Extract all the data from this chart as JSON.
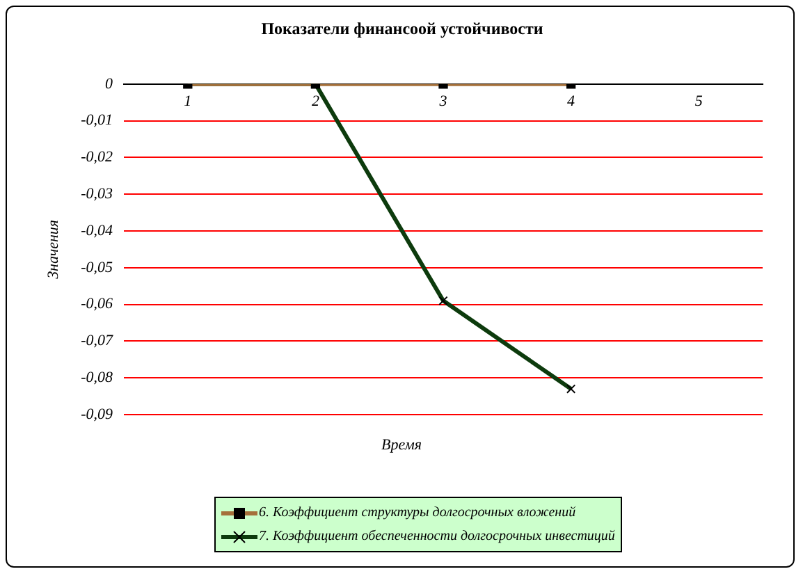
{
  "chart_data": {
    "type": "line",
    "title": "Показатели финансоой устойчивости",
    "xlabel": "Время",
    "ylabel": "Значения",
    "categories": [
      "1",
      "2",
      "3",
      "4",
      "5"
    ],
    "series": [
      {
        "name": "6. Коэффициент структуры долгосрочных вложений",
        "color": "#a5703a",
        "marker": "square",
        "values": [
          0,
          0,
          0,
          0,
          null
        ]
      },
      {
        "name": "7. Коэффициент обеспеченности долгосрочных инвестиций",
        "color": "#0d3b0d",
        "marker": "cross",
        "values": [
          0,
          0,
          -0.059,
          -0.083,
          null
        ]
      }
    ],
    "ylim": [
      -0.09,
      0
    ],
    "yticks": [
      {
        "value": 0,
        "label": "0"
      },
      {
        "value": -0.01,
        "label": "-0,01"
      },
      {
        "value": -0.02,
        "label": "-0,02"
      },
      {
        "value": -0.03,
        "label": "-0,03"
      },
      {
        "value": -0.04,
        "label": "-0,04"
      },
      {
        "value": -0.05,
        "label": "-0,05"
      },
      {
        "value": -0.06,
        "label": "-0,06"
      },
      {
        "value": -0.07,
        "label": "-0,07"
      },
      {
        "value": -0.08,
        "label": "-0,08"
      },
      {
        "value": -0.09,
        "label": "-0,09"
      }
    ],
    "grid": "y",
    "legend": "bottom"
  }
}
